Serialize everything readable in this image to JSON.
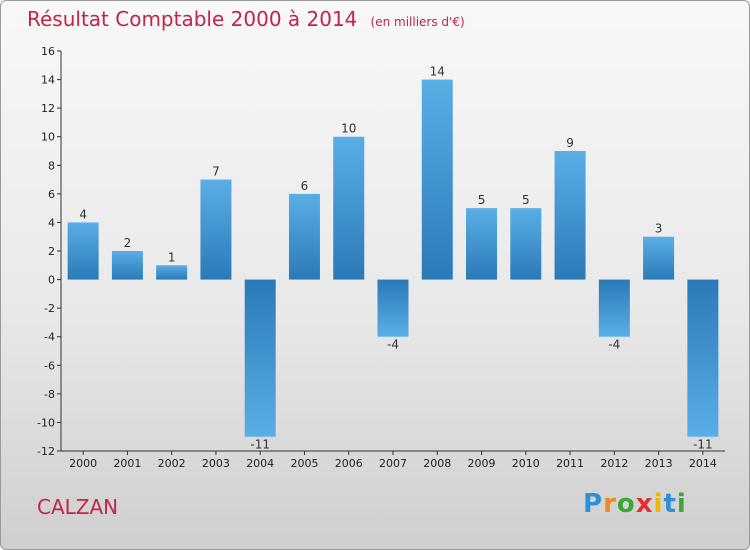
{
  "chart_data": {
    "type": "bar",
    "title": "Résultat Comptable 2000 à 2014",
    "subtitle": "(en milliers d'€)",
    "categories": [
      "2000",
      "2001",
      "2002",
      "2003",
      "2004",
      "2005",
      "2006",
      "2007",
      "2008",
      "2009",
      "2010",
      "2011",
      "2012",
      "2013",
      "2014"
    ],
    "values": [
      4,
      2,
      1,
      7,
      -11,
      6,
      10,
      -4,
      14,
      5,
      5,
      9,
      -4,
      3,
      -11
    ],
    "data_labels": [
      "4",
      "2",
      "1",
      "7",
      "-11",
      "6",
      "10",
      "-4",
      "14",
      "5",
      "5",
      "9",
      "-4",
      "3",
      "-11"
    ],
    "ylim": [
      -12,
      16
    ],
    "yticks": [
      16,
      14,
      12,
      10,
      8,
      6,
      4,
      2,
      0,
      -2,
      -4,
      -6,
      -8,
      -10,
      -12
    ],
    "grid": false,
    "bar_color_light": "#5aaee6",
    "bar_color_dark": "#2a7ab8"
  },
  "commune": "CALZAN",
  "logo": {
    "letters": [
      "P",
      "r",
      "o",
      "x",
      "i",
      "t",
      "i"
    ],
    "colors": [
      "#2e8fd6",
      "#f08a1c",
      "#39a935",
      "#e0302f",
      "#f4b400",
      "#2e8fd6",
      "#39a935"
    ]
  }
}
